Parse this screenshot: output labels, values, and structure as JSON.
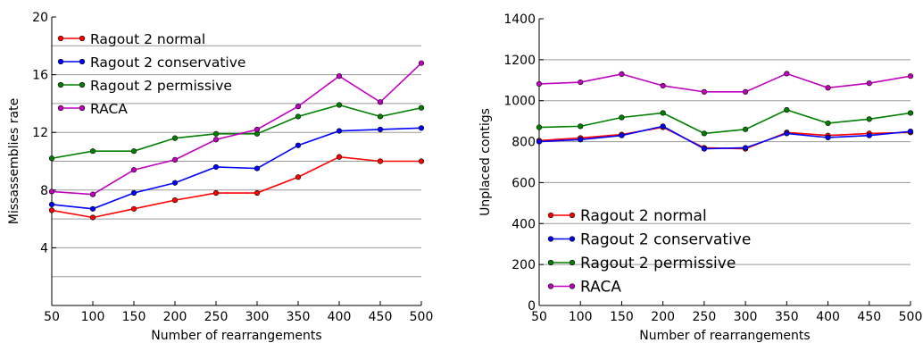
{
  "chart_data": [
    {
      "type": "line",
      "title": "",
      "xlabel": "Number of rearrangements",
      "ylabel": "Missassemblies rate",
      "x": [
        50,
        100,
        150,
        200,
        250,
        300,
        350,
        400,
        450,
        500
      ],
      "xlim": [
        50,
        500
      ],
      "ylim": [
        0,
        20
      ],
      "xticks": [
        50,
        100,
        150,
        200,
        250,
        300,
        350,
        400,
        450,
        500
      ],
      "yticks": [
        4,
        8,
        12,
        16,
        20
      ],
      "grid": "horizontal lines every 2",
      "legend_position": "top-left",
      "series": [
        {
          "name": "Ragout 2 normal",
          "color": "#ff0000",
          "values": [
            6.6,
            6.1,
            6.7,
            7.3,
            7.8,
            7.8,
            8.9,
            10.3,
            10.0,
            10.0
          ]
        },
        {
          "name": "Ragout 2 conservative",
          "color": "#0000ff",
          "values": [
            7.0,
            6.7,
            7.8,
            8.5,
            9.6,
            9.5,
            11.1,
            12.1,
            12.2,
            12.3
          ]
        },
        {
          "name": "Ragout 2 permissive",
          "color": "#008000",
          "values": [
            10.2,
            10.7,
            10.7,
            11.6,
            11.9,
            11.9,
            13.1,
            13.9,
            13.1,
            13.7
          ]
        },
        {
          "name": "RACA",
          "color": "#bf00bf",
          "values": [
            7.9,
            7.7,
            9.4,
            10.1,
            11.5,
            12.2,
            13.8,
            15.9,
            14.1,
            16.8
          ]
        }
      ]
    },
    {
      "type": "line",
      "title": "",
      "xlabel": "Number of rearrangements",
      "ylabel": "Unplaced contigs",
      "x": [
        50,
        100,
        150,
        200,
        250,
        300,
        350,
        400,
        450,
        500
      ],
      "xlim": [
        50,
        500
      ],
      "ylim": [
        0,
        1400
      ],
      "xticks": [
        50,
        100,
        150,
        200,
        250,
        300,
        350,
        400,
        450,
        500
      ],
      "yticks": [
        0,
        200,
        400,
        600,
        800,
        1000,
        1200,
        1400
      ],
      "grid": "horizontal lines every 200",
      "legend_position": "bottom-left",
      "series": [
        {
          "name": "Ragout 2 normal",
          "color": "#ff0000",
          "values": [
            805,
            818,
            835,
            870,
            770,
            765,
            845,
            830,
            840,
            845
          ]
        },
        {
          "name": "Ragout 2 conservative",
          "color": "#0000ff",
          "values": [
            800,
            810,
            830,
            875,
            765,
            770,
            840,
            820,
            830,
            850
          ]
        },
        {
          "name": "Ragout 2 permissive",
          "color": "#008000",
          "values": [
            870,
            875,
            918,
            940,
            840,
            860,
            955,
            890,
            910,
            940
          ]
        },
        {
          "name": "RACA",
          "color": "#bf00bf",
          "values": [
            1082,
            1090,
            1130,
            1073,
            1043,
            1043,
            1132,
            1063,
            1085,
            1120
          ]
        }
      ]
    }
  ]
}
